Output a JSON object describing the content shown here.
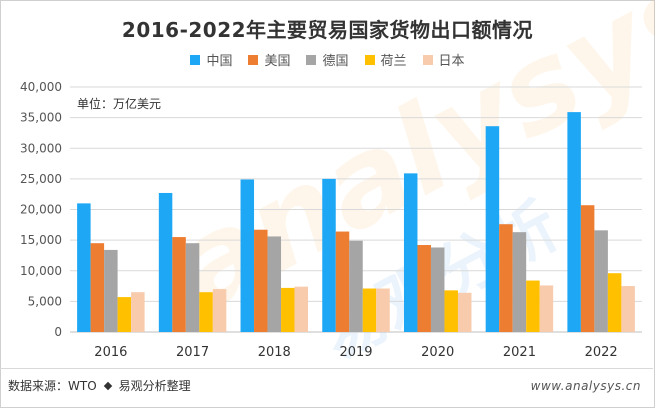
{
  "title": "2016-2022年主要贸易国家货物出口额情况",
  "unit_label": "单位：万亿美元",
  "footer": {
    "source": "数据来源：WTO",
    "org": "易观分析整理",
    "url": "www.analysys.cn"
  },
  "watermark": {
    "brand": "analysys",
    "cn": "易观分析"
  },
  "chart_data": {
    "type": "bar",
    "categories": [
      "2016",
      "2017",
      "2018",
      "2019",
      "2020",
      "2021",
      "2022"
    ],
    "ylim": [
      0,
      40000
    ],
    "yticks": [
      "0",
      "5,000",
      "10,000",
      "15,000",
      "20,000",
      "25,000",
      "30,000",
      "35,000",
      "40,000"
    ],
    "grid": true,
    "legend": "top",
    "series": [
      {
        "name": "中国",
        "color": "#1ea7f5",
        "values": [
          21000,
          22700,
          24900,
          25000,
          25900,
          33600,
          35900
        ]
      },
      {
        "name": "美国",
        "color": "#ed7d31",
        "values": [
          14500,
          15500,
          16700,
          16400,
          14200,
          17600,
          20700
        ]
      },
      {
        "name": "德国",
        "color": "#a5a5a5",
        "values": [
          13400,
          14500,
          15600,
          14900,
          13800,
          16300,
          16600
        ]
      },
      {
        "name": "荷兰",
        "color": "#ffc000",
        "values": [
          5700,
          6500,
          7200,
          7100,
          6800,
          8400,
          9600
        ]
      },
      {
        "name": "日本",
        "color": "#f8cbad",
        "values": [
          6500,
          7000,
          7400,
          7100,
          6400,
          7600,
          7500
        ]
      }
    ]
  }
}
